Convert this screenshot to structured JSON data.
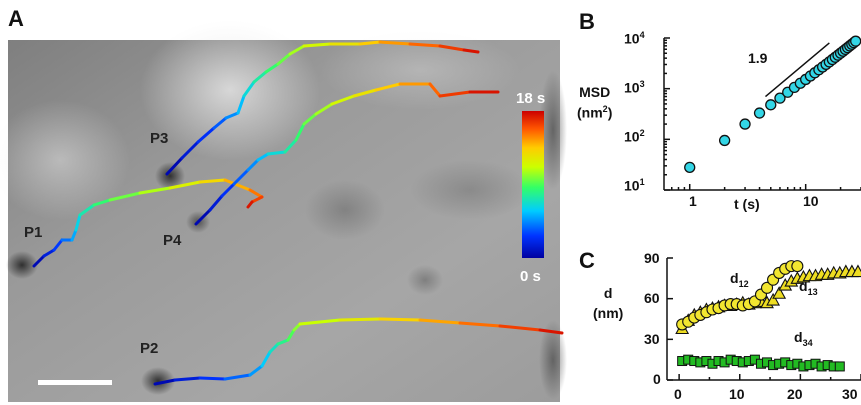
{
  "panel_a": {
    "letter": "A",
    "particles": [
      {
        "label": "P1"
      },
      {
        "label": "P2"
      },
      {
        "label": "P3"
      },
      {
        "label": "P4"
      }
    ],
    "colorbar": {
      "max_label": "18 s",
      "min_label": "0 s"
    }
  },
  "panel_b": {
    "letter": "B",
    "ylabel_main": "MSD",
    "ylabel_unit": "(nm",
    "ylabel_unit_sup": "2",
    "ylabel_unit_close": ")",
    "xlabel": "t (s)",
    "slope_label": "1.9",
    "yticks": [
      {
        "base": "10",
        "exp": "1"
      },
      {
        "base": "10",
        "exp": "2"
      },
      {
        "base": "10",
        "exp": "3"
      },
      {
        "base": "10",
        "exp": "4"
      }
    ],
    "xticks": [
      "1",
      "10"
    ]
  },
  "panel_c": {
    "letter": "C",
    "ylabel_main": "d",
    "ylabel_unit": "(nm)",
    "yticks": [
      "0",
      "30",
      "60",
      "90"
    ],
    "xticks": [
      "0",
      "10",
      "20",
      "30"
    ],
    "series_labels": [
      {
        "base": "d",
        "sub": "12"
      },
      {
        "base": "d",
        "sub": "13"
      },
      {
        "base": "d",
        "sub": "34"
      }
    ]
  },
  "colors": {
    "msd_marker": "#33d6e6",
    "d12_marker": "#f2e630",
    "d13_marker": "#eedd22",
    "d34_marker": "#22bb22"
  },
  "chart_data": [
    {
      "type": "scatter",
      "panel": "B",
      "x_scale": "log",
      "y_scale": "log",
      "xlim": [
        0.6,
        30
      ],
      "ylim": [
        10,
        10000
      ],
      "series": [
        {
          "x": [
            1,
            2,
            3,
            4,
            5,
            6,
            7,
            8,
            9,
            10,
            11,
            12,
            13,
            14,
            15,
            16,
            17,
            18,
            19,
            20,
            21,
            22,
            23,
            24,
            25,
            26,
            27
          ],
          "y": [
            28,
            95,
            200,
            330,
            480,
            650,
            850,
            1060,
            1280,
            1520,
            1780,
            2060,
            2360,
            2680,
            3020,
            3380,
            3760,
            4160,
            4580,
            5020,
            5480,
            5960,
            6460,
            6980,
            7520,
            8080,
            8660
          ]
        }
      ],
      "slope_line": {
        "x": [
          4.5,
          16
        ],
        "y": [
          700,
          8000
        ]
      }
    },
    {
      "type": "scatter",
      "panel": "C",
      "xlim": [
        -2,
        30
      ],
      "ylim": [
        0,
        90
      ],
      "series": [
        {
          "name": "d12",
          "marker": "circle",
          "x": [
            0.5,
            1.5,
            2.5,
            3.5,
            4.5,
            5.5,
            6.5,
            7.5,
            8.5,
            9.5,
            10.5,
            11.5,
            12.5,
            13.5,
            14.5,
            15.5,
            16.5,
            17.5,
            18.5,
            19.5
          ],
          "y": [
            41,
            43,
            46,
            48,
            50,
            52,
            53,
            55,
            56,
            56,
            55,
            56,
            58,
            63,
            68,
            74,
            79,
            82,
            84,
            84
          ]
        },
        {
          "name": "d13",
          "marker": "triangle",
          "x": [
            0.5,
            1.5,
            2.5,
            3.5,
            4.5,
            5.5,
            6.5,
            7.5,
            8.5,
            9.5,
            10.5,
            11.5,
            12.5,
            13.5,
            14.5,
            15.5,
            16.5,
            17.5,
            18.5,
            19.5,
            20.5,
            21.5,
            22.5,
            23.5,
            24.5,
            25.5,
            26.5,
            27.5,
            28.5,
            29.5
          ],
          "y": [
            38,
            44,
            48,
            50,
            52,
            53,
            54,
            55,
            55,
            56,
            57,
            56,
            57,
            58,
            57,
            59,
            64,
            70,
            73,
            75,
            76,
            77,
            77,
            78,
            78,
            79,
            79,
            80,
            80,
            80
          ]
        },
        {
          "name": "d34",
          "marker": "square",
          "x": [
            0.5,
            1.5,
            2.5,
            3.5,
            4.5,
            5.5,
            6.5,
            7.5,
            8.5,
            9.5,
            10.5,
            11.5,
            12.5,
            13.5,
            14.5,
            15.5,
            16.5,
            17.5,
            18.5,
            19.5,
            20.5,
            21.5,
            22.5,
            23.5,
            24.5,
            25.5,
            26.5
          ],
          "y": [
            14,
            15,
            14,
            13,
            14,
            12,
            14,
            13,
            15,
            14,
            13,
            14,
            15,
            12,
            13,
            11,
            12,
            13,
            11,
            12,
            10,
            11,
            12,
            10,
            11,
            10,
            10
          ]
        }
      ]
    }
  ]
}
